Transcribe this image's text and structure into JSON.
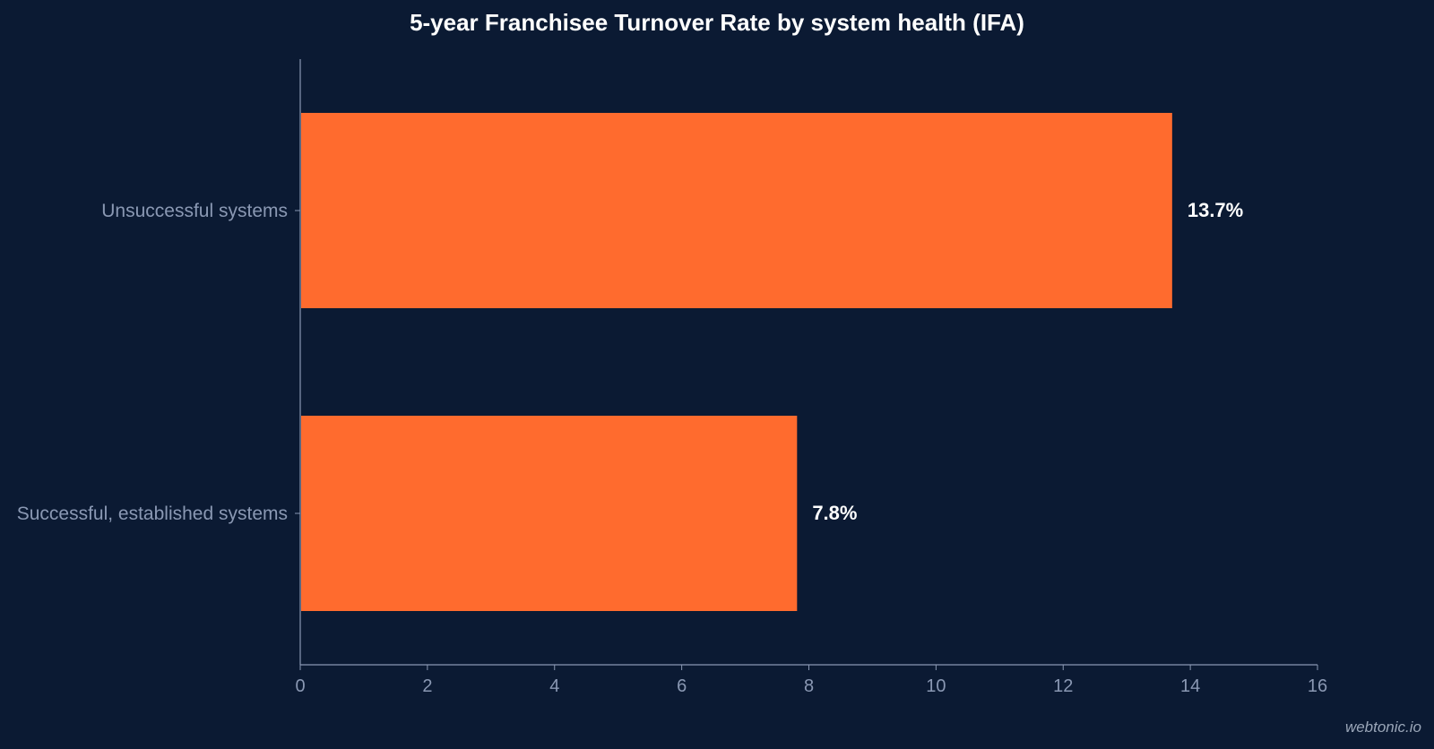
{
  "chart_data": {
    "type": "bar",
    "orientation": "horizontal",
    "title": "5-year Franchisee Turnover Rate by system health (IFA)",
    "xlabel": "",
    "ylabel": "",
    "categories": [
      "Unsuccessful systems",
      "Successful, established systems"
    ],
    "values": [
      13.7,
      7.8
    ],
    "value_labels": [
      "13.7%",
      "7.8%"
    ],
    "xlim": [
      0,
      16
    ],
    "xticks": [
      0,
      2,
      4,
      6,
      8,
      10,
      12,
      14,
      16
    ],
    "grid": false,
    "legend": "none",
    "colors": {
      "bar": "#ff6b2e",
      "background": "#0b1a33",
      "axis": "#8a98b3",
      "tick_label": "#8a98b3",
      "value_label": "#ffffff",
      "title": "#ffffff"
    }
  },
  "watermark": "webtonic.io"
}
